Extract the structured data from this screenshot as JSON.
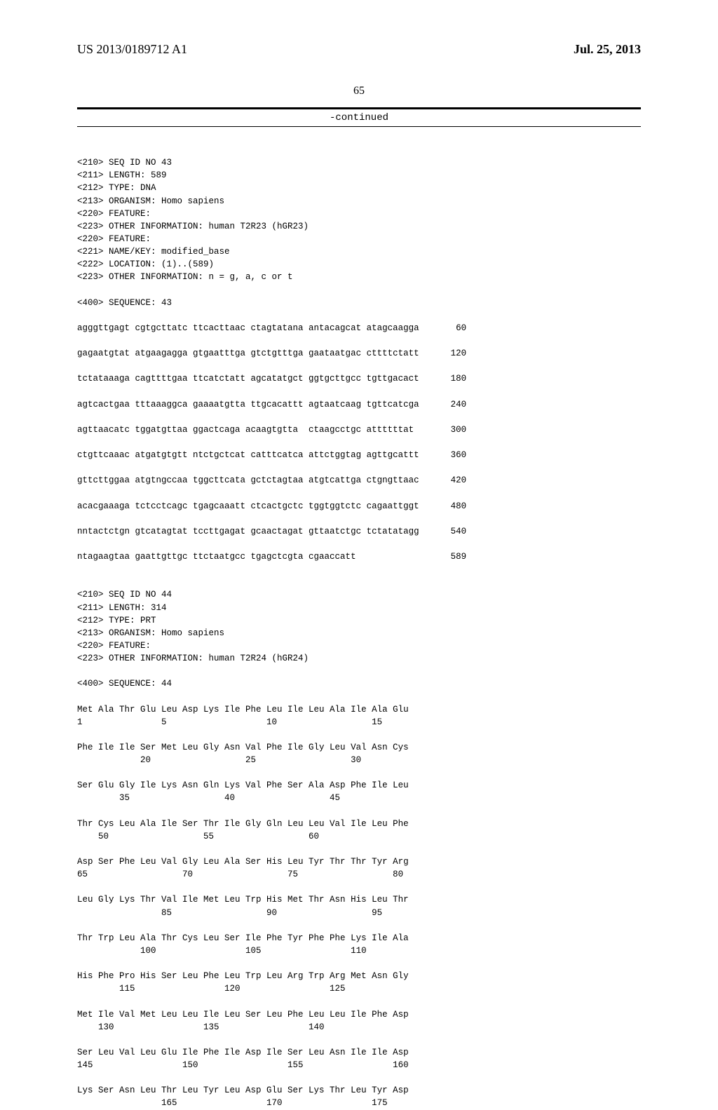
{
  "header": {
    "pubnum": "US 2013/0189712 A1",
    "pubdate": "Jul. 25, 2013"
  },
  "pagenum": "65",
  "continued": "-continued",
  "seqlisting": "\n<210> SEQ ID NO 43\n<211> LENGTH: 589\n<212> TYPE: DNA\n<213> ORGANISM: Homo sapiens\n<220> FEATURE:\n<223> OTHER INFORMATION: human T2R23 (hGR23)\n<220> FEATURE:\n<221> NAME/KEY: modified_base\n<222> LOCATION: (1)..(589)\n<223> OTHER INFORMATION: n = g, a, c or t\n\n<400> SEQUENCE: 43\n\nagggttgagt cgtgcttatc ttcacttaac ctagtatana antacagcat atagcaagga       60\n\ngagaatgtat atgaagagga gtgaatttga gtctgtttga gaataatgac cttttctatt      120\n\ntctataaaga cagttttgaa ttcatctatt agcatatgct ggtgcttgcc tgttgacact      180\n\nagtcactgaa tttaaaggca gaaaatgtta ttgcacattt agtaatcaag tgttcatcga      240\n\nagttaacatc tggatgttaa ggactcaga acaagtgtta  ctaagcctgc attttttat       300\n\nctgttcaaac atgatgtgtt ntctgctcat catttcatca attctggtag agttgcattt      360\n\ngttcttggaa atgtngccaa tggcttcata gctctagtaa atgtcattga ctgngttaac      420\n\nacacgaaaga tctcctcagc tgagcaaatt ctcactgctc tggtggtctc cagaattggt      480\n\nnntactctgn gtcatagtat tccttgagat gcaactagat gttaatctgc tctatatagg      540\n\nntagaagtaa gaattgttgc ttctaatgcc tgagctcgta cgaaccatt                  589\n\n\n<210> SEQ ID NO 44\n<211> LENGTH: 314\n<212> TYPE: PRT\n<213> ORGANISM: Homo sapiens\n<220> FEATURE:\n<223> OTHER INFORMATION: human T2R24 (hGR24)\n\n<400> SEQUENCE: 44\n\nMet Ala Thr Glu Leu Asp Lys Ile Phe Leu Ile Leu Ala Ile Ala Glu\n1               5                   10                  15\n\nPhe Ile Ile Ser Met Leu Gly Asn Val Phe Ile Gly Leu Val Asn Cys\n            20                  25                  30\n\nSer Glu Gly Ile Lys Asn Gln Lys Val Phe Ser Ala Asp Phe Ile Leu\n        35                  40                  45\n\nThr Cys Leu Ala Ile Ser Thr Ile Gly Gln Leu Leu Val Ile Leu Phe\n    50                  55                  60\n\nAsp Ser Phe Leu Val Gly Leu Ala Ser His Leu Tyr Thr Thr Tyr Arg\n65                  70                  75                  80\n\nLeu Gly Lys Thr Val Ile Met Leu Trp His Met Thr Asn His Leu Thr\n                85                  90                  95\n\nThr Trp Leu Ala Thr Cys Leu Ser Ile Phe Tyr Phe Phe Lys Ile Ala\n            100                 105                 110\n\nHis Phe Pro His Ser Leu Phe Leu Trp Leu Arg Trp Arg Met Asn Gly\n        115                 120                 125\n\nMet Ile Val Met Leu Leu Ile Leu Ser Leu Phe Leu Leu Ile Phe Asp\n    130                 135                 140\n\nSer Leu Val Leu Glu Ile Phe Ile Asp Ile Ser Leu Asn Ile Ile Asp\n145                 150                 155                 160\n\nLys Ser Asn Leu Thr Leu Tyr Leu Asp Glu Ser Lys Thr Leu Tyr Asp\n                165                 170                 175"
}
